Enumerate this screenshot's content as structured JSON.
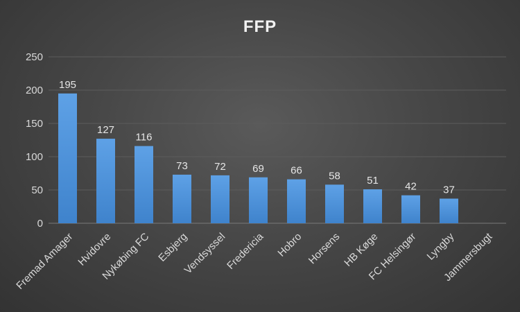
{
  "chart_data": {
    "type": "bar",
    "title": "FFP",
    "xlabel": "",
    "ylabel": "",
    "categories": [
      "Fremad Amager",
      "Hvidovre",
      "Nykøbing FC",
      "Esbjerg",
      "Vendsyssel",
      "Fredericia",
      "Hobro",
      "Horsens",
      "HB Køge",
      "FC Helsingør",
      "Lyngby",
      "Jammersbugt"
    ],
    "values": [
      195,
      127,
      116,
      73,
      72,
      69,
      66,
      58,
      51,
      42,
      37,
      0
    ],
    "data_labels": [
      "195",
      "127",
      "116",
      "73",
      "72",
      "69",
      "66",
      "58",
      "51",
      "42",
      "37",
      ""
    ],
    "ylim": [
      0,
      250
    ],
    "yticks": [
      0,
      50,
      100,
      150,
      200,
      250
    ],
    "grid": true,
    "legend": "none",
    "colors": {
      "bar_top": "#5ea1e6",
      "bar_bottom": "#3f83cc",
      "background": "#444444"
    }
  }
}
